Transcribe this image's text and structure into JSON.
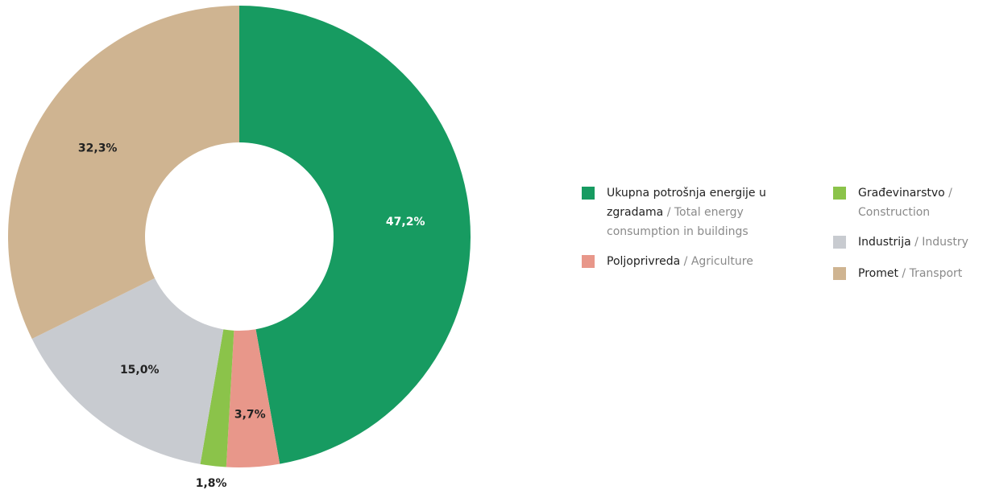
{
  "chart_data": {
    "type": "donut",
    "categories": [
      "Ukupna potrošnja energije u zgradama",
      "Poljoprivreda",
      "Građevinarstvo",
      "Industrija",
      "Promet"
    ],
    "category_translations": [
      "/ Total energy consumption in buildings",
      "/ Agriculture",
      "/ Construction",
      "/ Industry",
      "/ Transport"
    ],
    "values": [
      47.2,
      3.7,
      1.8,
      15.0,
      32.3
    ],
    "value_labels": [
      "47,2%",
      "3,7%",
      "1,8%",
      "15,0%",
      "32,3%"
    ],
    "colors": [
      "#179b61",
      "#e8978a",
      "#8bc34a",
      "#c8cbd0",
      "#cfb491"
    ]
  }
}
